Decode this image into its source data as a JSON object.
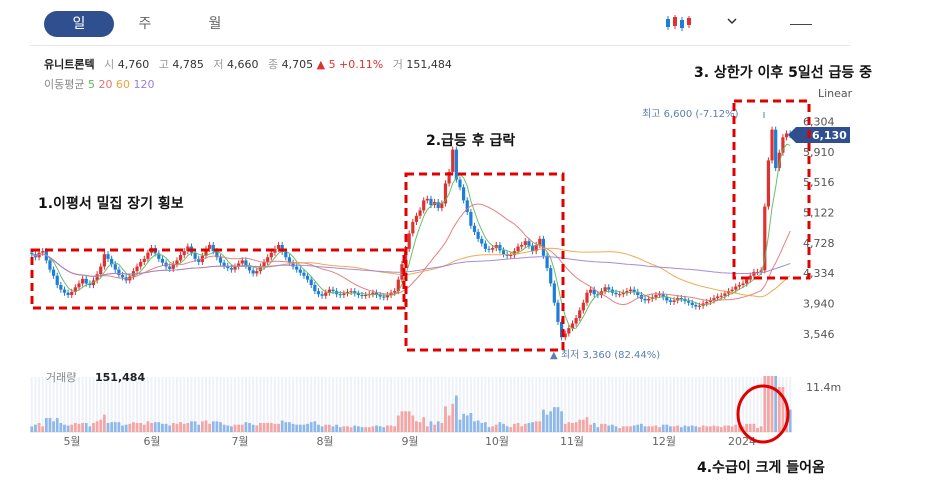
{
  "tabs": [
    {
      "label": "일",
      "active": true
    },
    {
      "label": "주",
      "active": false
    },
    {
      "label": "월",
      "active": false
    }
  ],
  "stock": {
    "name": "유니트론텍",
    "open_label": "시",
    "open": "4,760",
    "high_label": "고",
    "high": "4,785",
    "low_label": "저",
    "low": "4,660",
    "close_label": "종",
    "close": "4,705",
    "change": "▲ 5 +0.11%",
    "volume_label": "거",
    "volume": "151,484"
  },
  "moving_average": {
    "label": "이동평균",
    "periods": [
      {
        "value": "5",
        "color": "#5cb85c"
      },
      {
        "value": "20",
        "color": "#e57373"
      },
      {
        "value": "60",
        "color": "#f0a040"
      },
      {
        "value": "120",
        "color": "#9b7fd4"
      }
    ]
  },
  "price_axis": [
    "6,304",
    "5,910",
    "5,516",
    "5,122",
    "4,728",
    "4,334",
    "3,940",
    "3,546"
  ],
  "current_price": "6,130",
  "scale_label": "Linear",
  "high_label": "최고 6,600 (-7.12%)",
  "low_label": "▲ 최저 3,360 (82.44%)",
  "volume_panel": {
    "label": "거래량",
    "value": "151,484",
    "axis_max": "11.4m"
  },
  "months": [
    "5월",
    "6월",
    "7월",
    "8월",
    "9월",
    "10월",
    "11월",
    "12월",
    "2024"
  ],
  "annotations": {
    "a1": "1.이평서 밀집 장기 횡보",
    "a2": "2.급등 후 급락",
    "a3": "3. 상한가 이후 5일선 급등 중",
    "a4": "4.수급이 크게 들어옴"
  },
  "colors": {
    "up": "#e03131",
    "down": "#1c7ed6",
    "annotation": "#e00000",
    "tab_active": "#2f4f8f"
  },
  "chart_data": {
    "type": "candlestick",
    "y_axis_ticks": [
      6304,
      5910,
      5516,
      5122,
      4728,
      4334,
      3940,
      3546
    ],
    "x_ticks": [
      "5월",
      "6월",
      "7월",
      "8월",
      "9월",
      "10월",
      "11월",
      "12월",
      "2024"
    ],
    "high": 6600,
    "low": 3360,
    "last": 6130,
    "ylim": [
      3400,
      6650
    ],
    "close": [
      4580,
      4540,
      4600,
      4620,
      4500,
      4380,
      4300,
      4180,
      4120,
      4080,
      4050,
      4090,
      4150,
      4200,
      4260,
      4200,
      4180,
      4240,
      4320,
      4420,
      4580,
      4520,
      4450,
      4380,
      4310,
      4280,
      4240,
      4290,
      4360,
      4420,
      4480,
      4520,
      4600,
      4660,
      4590,
      4520,
      4470,
      4420,
      4390,
      4450,
      4500,
      4570,
      4620,
      4680,
      4600,
      4520,
      4480,
      4560,
      4650,
      4700,
      4620,
      4540,
      4470,
      4430,
      4400,
      4380,
      4420,
      4460,
      4500,
      4430,
      4370,
      4330,
      4360,
      4420,
      4480,
      4540,
      4600,
      4650,
      4700,
      4610,
      4540,
      4470,
      4420,
      4380,
      4340,
      4300,
      4250,
      4180,
      4100,
      4060,
      4040,
      4080,
      4120,
      4100,
      4060,
      4050,
      4070,
      4090,
      4100,
      4070,
      4050,
      4040,
      4050,
      4060,
      4080,
      4050,
      4030,
      4020,
      4050,
      4080,
      4100,
      4250,
      4450,
      4650,
      4850,
      5000,
      5080,
      5150,
      5280,
      5300,
      5220,
      5260,
      5180,
      5240,
      5500,
      5650,
      5940,
      5550,
      5450,
      5280,
      5130,
      4950,
      4870,
      4780,
      4720,
      4650,
      4640,
      4660,
      4700,
      4630,
      4580,
      4560,
      4570,
      4620,
      4680,
      4700,
      4750,
      4690,
      4620,
      4700,
      4780,
      4560,
      4400,
      4200,
      3950,
      3700,
      3500,
      3550,
      3620,
      3680,
      3750,
      3850,
      3950,
      4080,
      4120,
      4060,
      4050,
      4100,
      4150,
      4120,
      4080,
      4060,
      4060,
      4080,
      4100,
      4120,
      4090,
      4050,
      4000,
      3980,
      4000,
      4020,
      4050,
      4060,
      4020,
      3980,
      3960,
      3980,
      4010,
      4000,
      3970,
      3950,
      3920,
      3900,
      3910,
      3940,
      3960,
      3980,
      4010,
      4030,
      4040,
      4070,
      4100,
      4120,
      4160,
      4180,
      4200,
      4250,
      4300,
      4350,
      4350,
      4370,
      5200,
      5800,
      6200,
      5700,
      5900,
      6100,
      6150,
      6130
    ]
  }
}
